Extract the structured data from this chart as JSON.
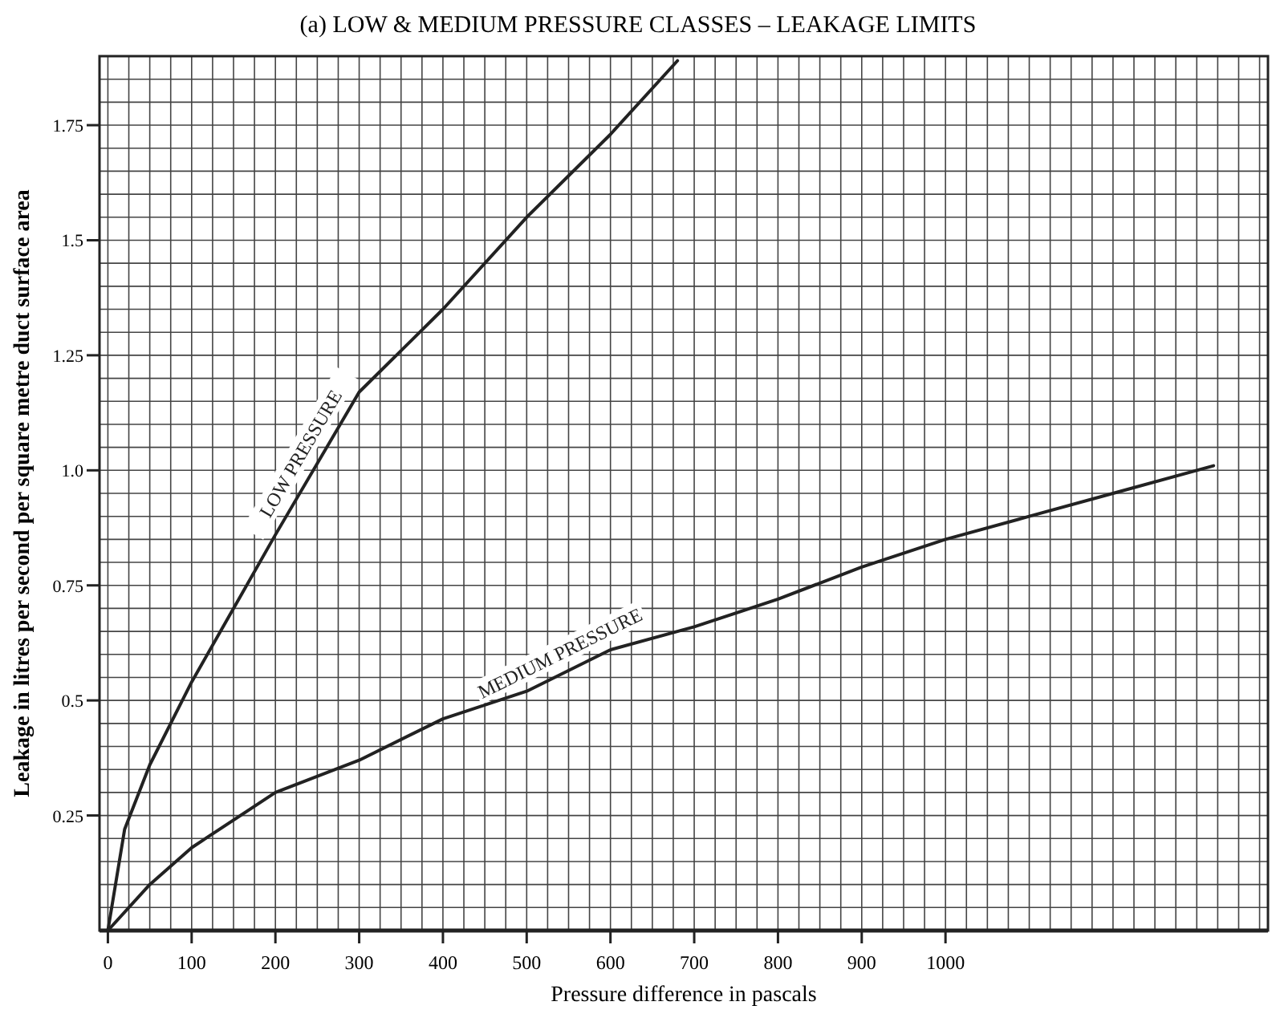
{
  "chart_data": {
    "type": "line",
    "title": "(a) LOW & MEDIUM PRESSURE CLASSES – LEAKAGE LIMITS",
    "xlabel": "Pressure difference in pascals",
    "ylabel": "Leakage in litres per second per square metre duct surface area",
    "xlim": [
      -10,
      1385
    ],
    "ylim": [
      0,
      1.9
    ],
    "xticks": [
      0,
      {
        "value": 25,
        "label": null
      },
      {
        "value": 50,
        "label": null
      },
      {
        "value": 75,
        "label": null
      },
      100,
      {
        "value": 125,
        "label": null
      },
      {
        "value": 150,
        "label": null
      },
      {
        "value": 175,
        "label": null
      },
      200,
      {
        "value": 225,
        "label": null
      },
      {
        "value": 250,
        "label": null
      },
      {
        "value": 275,
        "label": null
      },
      300,
      {
        "value": 325,
        "label": null
      },
      {
        "value": 350,
        "label": null
      },
      {
        "value": 375,
        "label": null
      },
      400,
      {
        "value": 425,
        "label": null
      },
      {
        "value": 450,
        "label": null
      },
      {
        "value": 475,
        "label": null
      },
      500,
      {
        "value": 525,
        "label": null
      },
      {
        "value": 550,
        "label": null
      },
      {
        "value": 575,
        "label": null
      },
      600,
      {
        "value": 625,
        "label": null
      },
      {
        "value": 650,
        "label": null
      },
      {
        "value": 675,
        "label": null
      },
      700,
      {
        "value": 725,
        "label": null
      },
      {
        "value": 750,
        "label": null
      },
      {
        "value": 775,
        "label": null
      },
      800,
      {
        "value": 825,
        "label": null
      },
      {
        "value": 850,
        "label": null
      },
      {
        "value": 875,
        "label": null
      },
      900,
      {
        "value": 925,
        "label": null
      },
      {
        "value": 950,
        "label": null
      },
      {
        "value": 975,
        "label": null
      },
      1000,
      {
        "value": 1025,
        "label": null
      },
      {
        "value": 1050,
        "label": null
      },
      {
        "value": 1075,
        "label": null
      },
      {
        "value": 1100,
        "label": null
      },
      {
        "value": 1125,
        "label": null
      },
      {
        "value": 1150,
        "label": null
      },
      {
        "value": 1175,
        "label": null
      },
      {
        "value": 1200,
        "label": null
      },
      {
        "value": 1225,
        "label": null
      },
      {
        "value": 1250,
        "label": null
      },
      {
        "value": 1275,
        "label": null
      },
      {
        "value": 1300,
        "label": null
      },
      {
        "value": 1325,
        "label": null
      },
      {
        "value": 1350,
        "label": null
      },
      {
        "value": 1375,
        "label": null
      }
    ],
    "yticks": [
      {
        "value": 0.05,
        "label": null
      },
      {
        "value": 0.1,
        "label": null
      },
      {
        "value": 0.15,
        "label": null
      },
      {
        "value": 0.2,
        "label": null
      },
      0.25,
      {
        "value": 0.3,
        "label": null
      },
      {
        "value": 0.35,
        "label": null
      },
      {
        "value": 0.4,
        "label": null
      },
      {
        "value": 0.45,
        "label": null
      },
      0.5,
      {
        "value": 0.55,
        "label": null
      },
      {
        "value": 0.6,
        "label": null
      },
      {
        "value": 0.65,
        "label": null
      },
      {
        "value": 0.7,
        "label": null
      },
      0.75,
      {
        "value": 0.8,
        "label": null
      },
      {
        "value": 0.85,
        "label": null
      },
      {
        "value": 0.9,
        "label": null
      },
      {
        "value": 0.95,
        "label": null
      },
      {
        "value": 1.0,
        "label": "1.0"
      },
      {
        "value": 1.05,
        "label": null
      },
      {
        "value": 1.1,
        "label": null
      },
      {
        "value": 1.15,
        "label": null
      },
      {
        "value": 1.2,
        "label": null
      },
      1.25,
      {
        "value": 1.3,
        "label": null
      },
      {
        "value": 1.35,
        "label": null
      },
      {
        "value": 1.4,
        "label": null
      },
      {
        "value": 1.45,
        "label": null
      },
      1.5,
      {
        "value": 1.55,
        "label": null
      },
      {
        "value": 1.6,
        "label": null
      },
      {
        "value": 1.65,
        "label": null
      },
      {
        "value": 1.7,
        "label": null
      },
      1.75,
      {
        "value": 1.8,
        "label": null
      },
      {
        "value": 1.85,
        "label": null
      }
    ],
    "grid": true,
    "marker": "none",
    "line_style": "solid",
    "series": [
      {
        "name": "LOW PRESSURE",
        "color": "#222222",
        "x": [
          0,
          20,
          50,
          100,
          150,
          200,
          300,
          400,
          500,
          600,
          680
        ],
        "values": [
          0,
          0.22,
          0.36,
          0.54,
          0.7,
          0.86,
          1.17,
          1.35,
          1.55,
          1.73,
          1.89
        ]
      },
      {
        "name": "MEDIUM PRESSURE",
        "color": "#222222",
        "x": [
          0,
          50,
          100,
          200,
          300,
          400,
          500,
          600,
          700,
          800,
          900,
          1000,
          1100,
          1200,
          1320
        ],
        "values": [
          0,
          0.1,
          0.18,
          0.3,
          0.37,
          0.46,
          0.52,
          0.61,
          0.66,
          0.72,
          0.79,
          0.85,
          0.9,
          0.95,
          1.01
        ]
      }
    ]
  }
}
